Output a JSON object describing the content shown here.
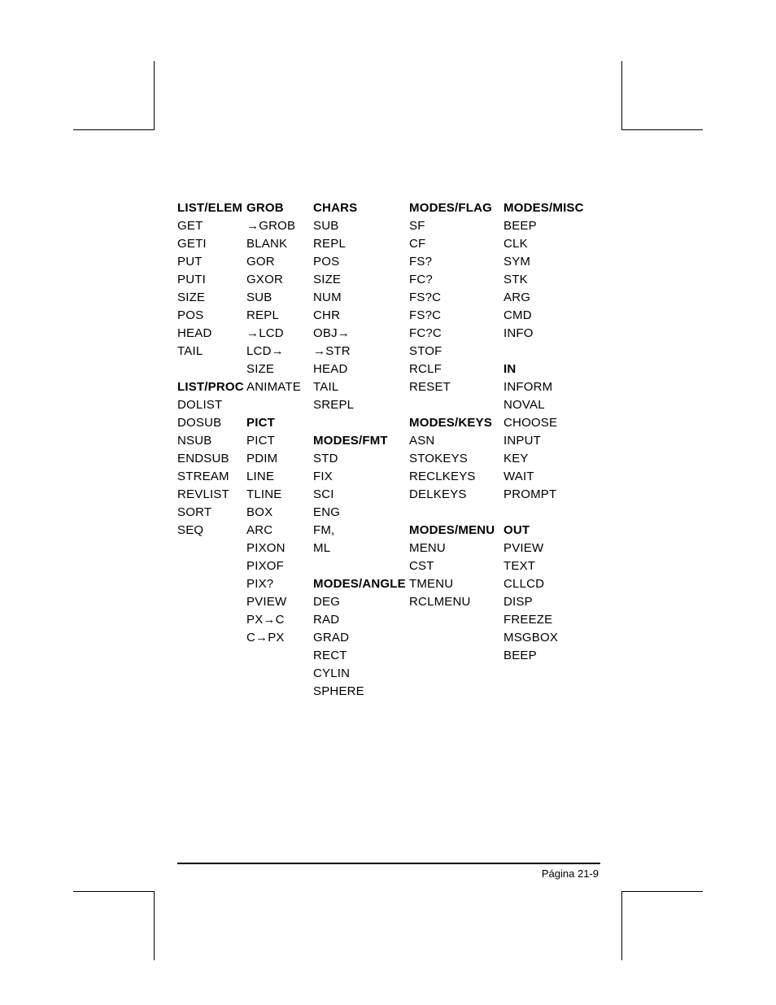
{
  "page_number": "Página 21-9",
  "columns": [
    {
      "width_class": "col-1",
      "cells": [
        {
          "text": "LIST/ELEM",
          "bold": true
        },
        {
          "text": "GET"
        },
        {
          "text": "GETI"
        },
        {
          "text": "PUT"
        },
        {
          "text": "PUTI"
        },
        {
          "text": "SIZE"
        },
        {
          "text": "POS"
        },
        {
          "text": "HEAD"
        },
        {
          "text": "TAIL"
        },
        {
          "text": ""
        },
        {
          "text": "LIST/PROC",
          "bold": true
        },
        {
          "text": "DOLIST"
        },
        {
          "text": "DOSUB"
        },
        {
          "text": "NSUB"
        },
        {
          "text": "ENDSUB"
        },
        {
          "text": "STREAM"
        },
        {
          "text": "REVLIST"
        },
        {
          "text": "SORT"
        },
        {
          "text": "SEQ"
        }
      ]
    },
    {
      "width_class": "col-2",
      "cells": [
        {
          "text": "GROB",
          "bold": true
        },
        {
          "text": "→GROB"
        },
        {
          "text": "BLANK"
        },
        {
          "text": "GOR"
        },
        {
          "text": "GXOR"
        },
        {
          "text": "SUB"
        },
        {
          "text": "REPL"
        },
        {
          "text": "→LCD"
        },
        {
          "text": "LCD→"
        },
        {
          "text": "SIZE"
        },
        {
          "text": "ANIMATE"
        },
        {
          "text": ""
        },
        {
          "text": "PICT",
          "bold": true
        },
        {
          "text": "PICT"
        },
        {
          "text": "PDIM"
        },
        {
          "text": "LINE"
        },
        {
          "text": "TLINE"
        },
        {
          "text": "BOX"
        },
        {
          "text": "ARC"
        },
        {
          "text": "PIXON"
        },
        {
          "text": "PIXOF"
        },
        {
          "text": "PIX?"
        },
        {
          "text": "PVIEW"
        },
        {
          "text": "PX→C"
        },
        {
          "text": "C→PX"
        }
      ]
    },
    {
      "width_class": "col-3",
      "cells": [
        {
          "text": "CHARS",
          "bold": true
        },
        {
          "text": "SUB"
        },
        {
          "text": "REPL"
        },
        {
          "text": "POS"
        },
        {
          "text": "SIZE"
        },
        {
          "text": "NUM"
        },
        {
          "text": "CHR"
        },
        {
          "text": "OBJ→"
        },
        {
          "text": "→STR"
        },
        {
          "text": "HEAD"
        },
        {
          "text": "TAIL"
        },
        {
          "text": "SREPL"
        },
        {
          "text": ""
        },
        {
          "text": "MODES/FMT",
          "bold": true
        },
        {
          "text": "STD"
        },
        {
          "text": "FIX"
        },
        {
          "text": "SCI"
        },
        {
          "text": "ENG"
        },
        {
          "text": "FM,"
        },
        {
          "text": "ML"
        },
        {
          "text": ""
        },
        {
          "text": "MODES/ANGLE",
          "bold": true
        },
        {
          "text": "DEG"
        },
        {
          "text": "RAD"
        },
        {
          "text": "GRAD"
        },
        {
          "text": "RECT"
        },
        {
          "text": "CYLIN"
        },
        {
          "text": "SPHERE"
        }
      ]
    },
    {
      "width_class": "col-4",
      "cells": [
        {
          "text": "MODES/FLAG",
          "bold": true
        },
        {
          "text": "SF"
        },
        {
          "text": "CF"
        },
        {
          "text": "FS?"
        },
        {
          "text": "FC?"
        },
        {
          "text": "FS?C"
        },
        {
          "text": "FS?C"
        },
        {
          "text": "FC?C"
        },
        {
          "text": "STOF"
        },
        {
          "text": "RCLF"
        },
        {
          "text": "RESET"
        },
        {
          "text": ""
        },
        {
          "text": "MODES/KEYS",
          "bold": true
        },
        {
          "text": "ASN"
        },
        {
          "text": "STOKEYS"
        },
        {
          "text": "RECLKEYS"
        },
        {
          "text": "DELKEYS"
        },
        {
          "text": ""
        },
        {
          "text": "MODES/MENU",
          "bold": true
        },
        {
          "text": "MENU"
        },
        {
          "text": "CST"
        },
        {
          "text": "TMENU"
        },
        {
          "text": "RCLMENU"
        }
      ]
    },
    {
      "width_class": "col-5",
      "cells": [
        {
          "text": "MODES/MISC",
          "bold": true
        },
        {
          "text": "BEEP"
        },
        {
          "text": "CLK"
        },
        {
          "text": "SYM"
        },
        {
          "text": "STK"
        },
        {
          "text": "ARG"
        },
        {
          "text": "CMD"
        },
        {
          "text": "INFO"
        },
        {
          "text": ""
        },
        {
          "text": "IN",
          "bold": true
        },
        {
          "text": "INFORM"
        },
        {
          "text": "NOVAL"
        },
        {
          "text": "CHOOSE"
        },
        {
          "text": "INPUT"
        },
        {
          "text": "KEY"
        },
        {
          "text": "WAIT"
        },
        {
          "text": "PROMPT"
        },
        {
          "text": ""
        },
        {
          "text": "OUT",
          "bold": true
        },
        {
          "text": "PVIEW"
        },
        {
          "text": "TEXT"
        },
        {
          "text": "CLLCD"
        },
        {
          "text": "DISP"
        },
        {
          "text": "FREEZE"
        },
        {
          "text": "MSGBOX"
        },
        {
          "text": "BEEP"
        }
      ]
    }
  ]
}
